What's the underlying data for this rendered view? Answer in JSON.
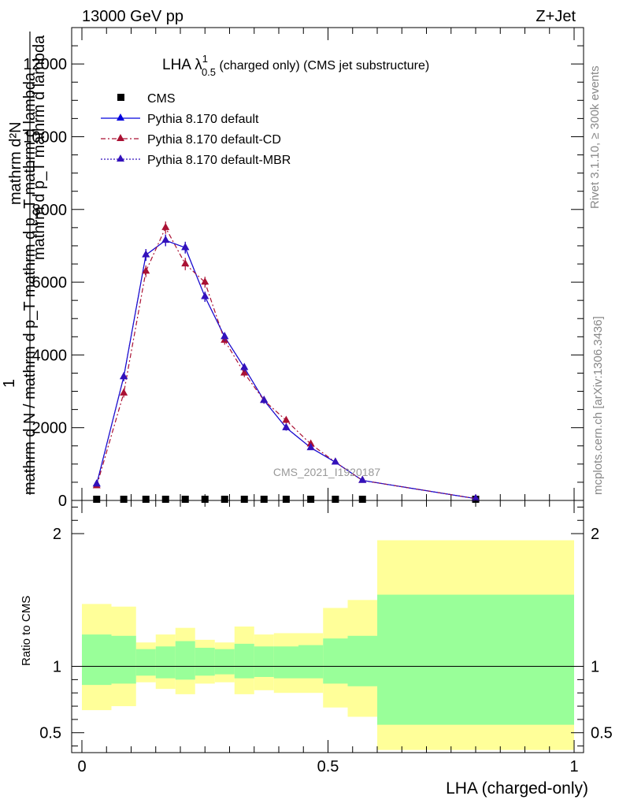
{
  "header": {
    "left": "13000 GeV pp",
    "right": "Z+Jet"
  },
  "side_labels": {
    "rivet": "Rivet 3.1.10, ≥ 300k events",
    "mcplots": "mcplots.cern.ch [arXiv:1306.3436]"
  },
  "watermark": "CMS_2021_I1920187",
  "chart_data": [
    {
      "type": "line",
      "title": "LHA λ",
      "title_sup": "1",
      "title_sub": "0.5",
      "title_tail": " (charged only) (CMS jet substructure)",
      "ylabel_top": "mathrm d²N",
      "ylabel_bottom": "mathrm d p_T mathrm d lambda",
      "ylabel_left_top": "1",
      "ylabel_left_bottom": "mathrm d N / mathrm d p_T",
      "ylabel_overlap": "mathrm d N / mathrm d p_T mathrm d p_T mathrm d lambda",
      "xlim": [
        0,
        1
      ],
      "ylim": [
        0,
        13000
      ],
      "yticks": [
        0,
        2000,
        4000,
        6000,
        8000,
        10000,
        12000
      ],
      "ytick_labels": [
        "0",
        "2000",
        "4000",
        "6000",
        "8000",
        "10000",
        "12000"
      ],
      "bin_edges": [
        0.0,
        0.06,
        0.11,
        0.15,
        0.19,
        0.23,
        0.27,
        0.31,
        0.35,
        0.39,
        0.44,
        0.49,
        0.54,
        0.6,
        1.0
      ],
      "x": [
        0.03,
        0.085,
        0.13,
        0.17,
        0.21,
        0.25,
        0.29,
        0.33,
        0.37,
        0.415,
        0.465,
        0.515,
        0.57,
        0.8
      ],
      "series": [
        {
          "name": "CMS",
          "color": "#000000",
          "marker": "square",
          "values": [
            0,
            0,
            0,
            0,
            0,
            0,
            0,
            0,
            0,
            0,
            0,
            0,
            0,
            0
          ]
        },
        {
          "name": "Pythia 8.170 default",
          "color": "#0000dd",
          "marker": "triangle",
          "dash": "solid",
          "values": [
            450,
            3400,
            6750,
            7150,
            6950,
            5600,
            4500,
            3650,
            2750,
            2000,
            1450,
            1050,
            550,
            50
          ],
          "errors": [
            60,
            120,
            160,
            160,
            160,
            140,
            120,
            110,
            90,
            80,
            60,
            50,
            40,
            10
          ]
        },
        {
          "name": "Pythia 8.170 default-CD",
          "color": "#aa1133",
          "marker": "triangle",
          "dash": "dashdot",
          "values": [
            400,
            2950,
            6300,
            7500,
            6500,
            6000,
            4400,
            3500,
            2750,
            2200,
            1550,
            1050,
            550,
            50
          ],
          "errors": [
            60,
            120,
            160,
            170,
            170,
            150,
            120,
            110,
            90,
            80,
            60,
            50,
            40,
            10
          ]
        },
        {
          "name": "Pythia 8.170 default-MBR",
          "color": "#3311bb",
          "marker": "triangle",
          "dash": "dotted",
          "values": [
            450,
            3400,
            6750,
            7150,
            6950,
            5600,
            4500,
            3650,
            2750,
            2000,
            1450,
            1050,
            550,
            50
          ],
          "errors": [
            60,
            120,
            160,
            160,
            160,
            140,
            120,
            110,
            90,
            80,
            60,
            50,
            40,
            10
          ]
        }
      ]
    },
    {
      "type": "area",
      "ylabel": "Ratio to CMS",
      "xlabel": "LHA (charged-only)",
      "xlim": [
        0,
        1
      ],
      "ylim": [
        0.35,
        2.25
      ],
      "yticks": [
        0.5,
        1,
        2
      ],
      "ytick_labels": [
        "0.5",
        "1",
        "2"
      ],
      "xticks": [
        0,
        0.5,
        1
      ],
      "xtick_labels": [
        "0",
        "0.5",
        "1"
      ],
      "bin_edges": [
        0.0,
        0.06,
        0.11,
        0.15,
        0.19,
        0.23,
        0.27,
        0.31,
        0.35,
        0.39,
        0.44,
        0.49,
        0.54,
        0.6,
        1.0
      ],
      "band_inner": {
        "color": "#99ff99",
        "low": [
          0.86,
          0.87,
          0.93,
          0.91,
          0.9,
          0.93,
          0.94,
          0.91,
          0.92,
          0.91,
          0.91,
          0.87,
          0.85,
          0.56
        ],
        "high": [
          1.24,
          1.23,
          1.13,
          1.15,
          1.19,
          1.14,
          1.13,
          1.17,
          1.15,
          1.15,
          1.16,
          1.21,
          1.23,
          1.54
        ]
      },
      "band_outer": {
        "color": "#ffff99",
        "low": [
          0.67,
          0.7,
          0.88,
          0.83,
          0.79,
          0.87,
          0.88,
          0.79,
          0.82,
          0.8,
          0.8,
          0.69,
          0.62,
          0.37
        ],
        "high": [
          1.47,
          1.45,
          1.18,
          1.24,
          1.29,
          1.2,
          1.18,
          1.3,
          1.24,
          1.25,
          1.25,
          1.44,
          1.5,
          1.95
        ]
      },
      "reference_line": 1
    }
  ]
}
